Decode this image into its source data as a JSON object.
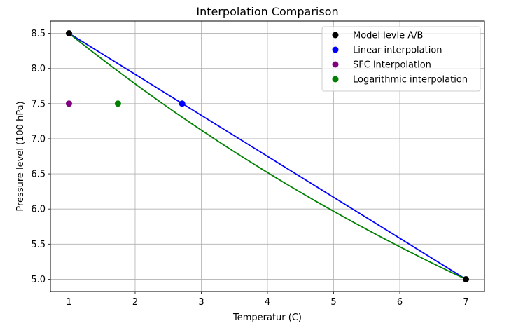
{
  "chart_data": {
    "type": "line",
    "title": "Interpolation Comparison",
    "xlabel": "Temperatur (C)",
    "ylabel": "Pressure level (100 hPa)",
    "xlim": [
      0.72,
      7.28
    ],
    "ylim": [
      4.825,
      8.675
    ],
    "xticks": [
      "1",
      "2",
      "3",
      "4",
      "5",
      "6",
      "7"
    ],
    "yticks": [
      "5.0",
      "5.5",
      "6.0",
      "6.5",
      "7.0",
      "7.5",
      "8.0",
      "8.5"
    ],
    "grid": true,
    "legend_position": "top-right",
    "legend": [
      {
        "label": "Model levle A/B",
        "color": "#000000"
      },
      {
        "label": "Linear interpolation",
        "color": "#0000ff"
      },
      {
        "label": "SFC interpolation",
        "color": "#800080"
      },
      {
        "label": "Logarithmic interpolation",
        "color": "#008000"
      }
    ],
    "lines": [
      {
        "color": "#0000ff",
        "style": "linear",
        "points": [
          [
            1,
            8.5
          ],
          [
            7,
            5.0
          ]
        ]
      },
      {
        "color": "#008000",
        "style": "logarithmic",
        "points": [
          [
            1,
            8.5
          ],
          [
            7,
            5.0
          ]
        ]
      }
    ],
    "scatter": [
      {
        "color": "#000000",
        "points": [
          [
            1,
            8.5
          ],
          [
            7,
            5.0
          ]
        ]
      },
      {
        "color": "#0000ff",
        "points": [
          [
            2.71,
            7.5
          ]
        ]
      },
      {
        "color": "#800080",
        "points": [
          [
            1,
            7.5
          ]
        ]
      },
      {
        "color": "#008000",
        "points": [
          [
            1.74,
            7.5
          ]
        ]
      }
    ]
  }
}
